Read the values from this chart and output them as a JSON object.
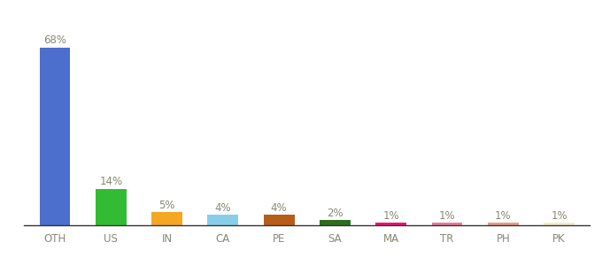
{
  "categories": [
    "OTH",
    "US",
    "IN",
    "CA",
    "PE",
    "SA",
    "MA",
    "TR",
    "PH",
    "PK"
  ],
  "values": [
    68,
    14,
    5,
    4,
    4,
    2,
    1,
    1,
    1,
    1
  ],
  "bar_colors": [
    "#4c6fcd",
    "#33bb33",
    "#f5a623",
    "#87ceeb",
    "#b85c1a",
    "#2d6e1e",
    "#ee1177",
    "#ee7799",
    "#e8998a",
    "#f0eecc"
  ],
  "background_color": "#ffffff",
  "label_fontsize": 8.5,
  "xlabel_fontsize": 8.5,
  "label_color": "#888877",
  "ylim": [
    0,
    78
  ]
}
